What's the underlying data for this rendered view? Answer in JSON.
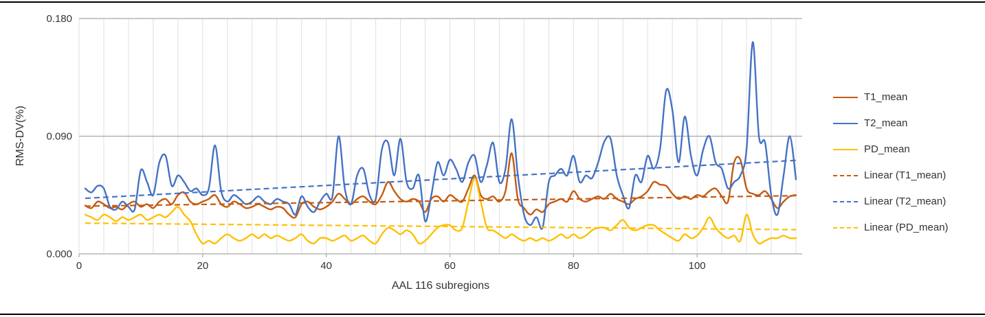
{
  "chart_data": {
    "type": "line",
    "title": "",
    "xlabel": "AAL 116 subregions",
    "ylabel": "RMS-DV(%)",
    "xlim": [
      0,
      117
    ],
    "ylim": [
      0,
      0.18
    ],
    "x_ticks": [
      0,
      20,
      40,
      60,
      80,
      100
    ],
    "x_gridline_step": 4,
    "y_ticks": [
      0.0,
      0.09,
      0.18
    ],
    "y_tick_labels": [
      "0.000",
      "0.090",
      "0.180"
    ],
    "grid": {
      "horizontal_color": "#a6a6a6",
      "vertical_color": "#e0e0e0",
      "axis_color": "#a6a6a6"
    },
    "legend_position": "right",
    "series": [
      {
        "name": "T1_mean",
        "color": "#c55a11",
        "style": "solid",
        "values": [
          0.037,
          0.035,
          0.04,
          0.038,
          0.035,
          0.036,
          0.034,
          0.038,
          0.04,
          0.036,
          0.038,
          0.035,
          0.04,
          0.042,
          0.038,
          0.045,
          0.047,
          0.04,
          0.038,
          0.04,
          0.042,
          0.045,
          0.038,
          0.036,
          0.04,
          0.038,
          0.035,
          0.036,
          0.038,
          0.036,
          0.034,
          0.036,
          0.035,
          0.03,
          0.028,
          0.038,
          0.04,
          0.036,
          0.034,
          0.036,
          0.04,
          0.046,
          0.042,
          0.038,
          0.042,
          0.044,
          0.04,
          0.038,
          0.045,
          0.055,
          0.048,
          0.042,
          0.04,
          0.042,
          0.04,
          0.032,
          0.042,
          0.044,
          0.04,
          0.045,
          0.042,
          0.04,
          0.05,
          0.06,
          0.045,
          0.042,
          0.044,
          0.04,
          0.048,
          0.077,
          0.042,
          0.035,
          0.03,
          0.034,
          0.032,
          0.038,
          0.04,
          0.042,
          0.04,
          0.048,
          0.042,
          0.04,
          0.042,
          0.044,
          0.042,
          0.046,
          0.042,
          0.04,
          0.038,
          0.042,
          0.044,
          0.048,
          0.055,
          0.053,
          0.052,
          0.046,
          0.042,
          0.044,
          0.042,
          0.045,
          0.044,
          0.048,
          0.05,
          0.044,
          0.04,
          0.07,
          0.072,
          0.05,
          0.046,
          0.045,
          0.048,
          0.042,
          0.035,
          0.04,
          0.044,
          0.045
        ]
      },
      {
        "name": "T2_mean",
        "color": "#4472c4",
        "style": "solid",
        "values": [
          0.05,
          0.047,
          0.052,
          0.05,
          0.036,
          0.034,
          0.04,
          0.036,
          0.034,
          0.064,
          0.055,
          0.045,
          0.07,
          0.075,
          0.052,
          0.06,
          0.055,
          0.048,
          0.05,
          0.045,
          0.05,
          0.083,
          0.048,
          0.04,
          0.045,
          0.042,
          0.038,
          0.04,
          0.044,
          0.04,
          0.038,
          0.042,
          0.04,
          0.038,
          0.03,
          0.044,
          0.036,
          0.032,
          0.04,
          0.046,
          0.044,
          0.09,
          0.05,
          0.038,
          0.06,
          0.065,
          0.045,
          0.042,
          0.08,
          0.085,
          0.06,
          0.088,
          0.055,
          0.05,
          0.06,
          0.025,
          0.045,
          0.07,
          0.06,
          0.072,
          0.065,
          0.055,
          0.07,
          0.075,
          0.055,
          0.068,
          0.085,
          0.055,
          0.065,
          0.103,
          0.06,
          0.03,
          0.022,
          0.028,
          0.02,
          0.055,
          0.06,
          0.065,
          0.06,
          0.075,
          0.055,
          0.06,
          0.058,
          0.07,
          0.086,
          0.088,
          0.06,
          0.045,
          0.035,
          0.06,
          0.055,
          0.075,
          0.065,
          0.08,
          0.125,
          0.11,
          0.07,
          0.105,
          0.075,
          0.06,
          0.08,
          0.09,
          0.07,
          0.065,
          0.05,
          0.055,
          0.06,
          0.08,
          0.162,
          0.09,
          0.085,
          0.045,
          0.03,
          0.06,
          0.09,
          0.057
        ]
      },
      {
        "name": "PD_mean",
        "color": "#ffc000",
        "style": "solid",
        "values": [
          0.03,
          0.028,
          0.026,
          0.03,
          0.028,
          0.025,
          0.028,
          0.026,
          0.028,
          0.03,
          0.026,
          0.028,
          0.03,
          0.028,
          0.032,
          0.036,
          0.03,
          0.025,
          0.015,
          0.008,
          0.01,
          0.008,
          0.012,
          0.015,
          0.012,
          0.01,
          0.012,
          0.015,
          0.012,
          0.015,
          0.012,
          0.014,
          0.012,
          0.01,
          0.012,
          0.015,
          0.01,
          0.008,
          0.012,
          0.012,
          0.01,
          0.012,
          0.014,
          0.01,
          0.012,
          0.014,
          0.01,
          0.008,
          0.015,
          0.02,
          0.018,
          0.015,
          0.018,
          0.015,
          0.008,
          0.01,
          0.015,
          0.02,
          0.022,
          0.022,
          0.018,
          0.02,
          0.04,
          0.058,
          0.04,
          0.02,
          0.018,
          0.015,
          0.012,
          0.015,
          0.012,
          0.01,
          0.012,
          0.01,
          0.012,
          0.01,
          0.012,
          0.015,
          0.012,
          0.015,
          0.012,
          0.014,
          0.018,
          0.02,
          0.02,
          0.018,
          0.022,
          0.026,
          0.02,
          0.018,
          0.02,
          0.022,
          0.022,
          0.018,
          0.015,
          0.012,
          0.01,
          0.015,
          0.012,
          0.014,
          0.02,
          0.028,
          0.02,
          0.015,
          0.012,
          0.014,
          0.01,
          0.03,
          0.015,
          0.008,
          0.01,
          0.012,
          0.012,
          0.014,
          0.012,
          0.012
        ]
      },
      {
        "name": "Linear (T1_mean)",
        "color": "#c55a11",
        "style": "dashed",
        "trend": [
          0.0365,
          0.0445
        ]
      },
      {
        "name": "Linear (T2_mean)",
        "color": "#4472c4",
        "style": "dashed",
        "trend": [
          0.0425,
          0.0715
        ]
      },
      {
        "name": "Linear (PD_mean)",
        "color": "#ffc000",
        "style": "dashed",
        "trend": [
          0.0235,
          0.0185
        ]
      }
    ],
    "legend": [
      "T1_mean",
      "T2_mean",
      "PD_mean",
      "Linear (T1_mean)",
      "Linear (T2_mean)",
      "Linear (PD_mean)"
    ]
  }
}
